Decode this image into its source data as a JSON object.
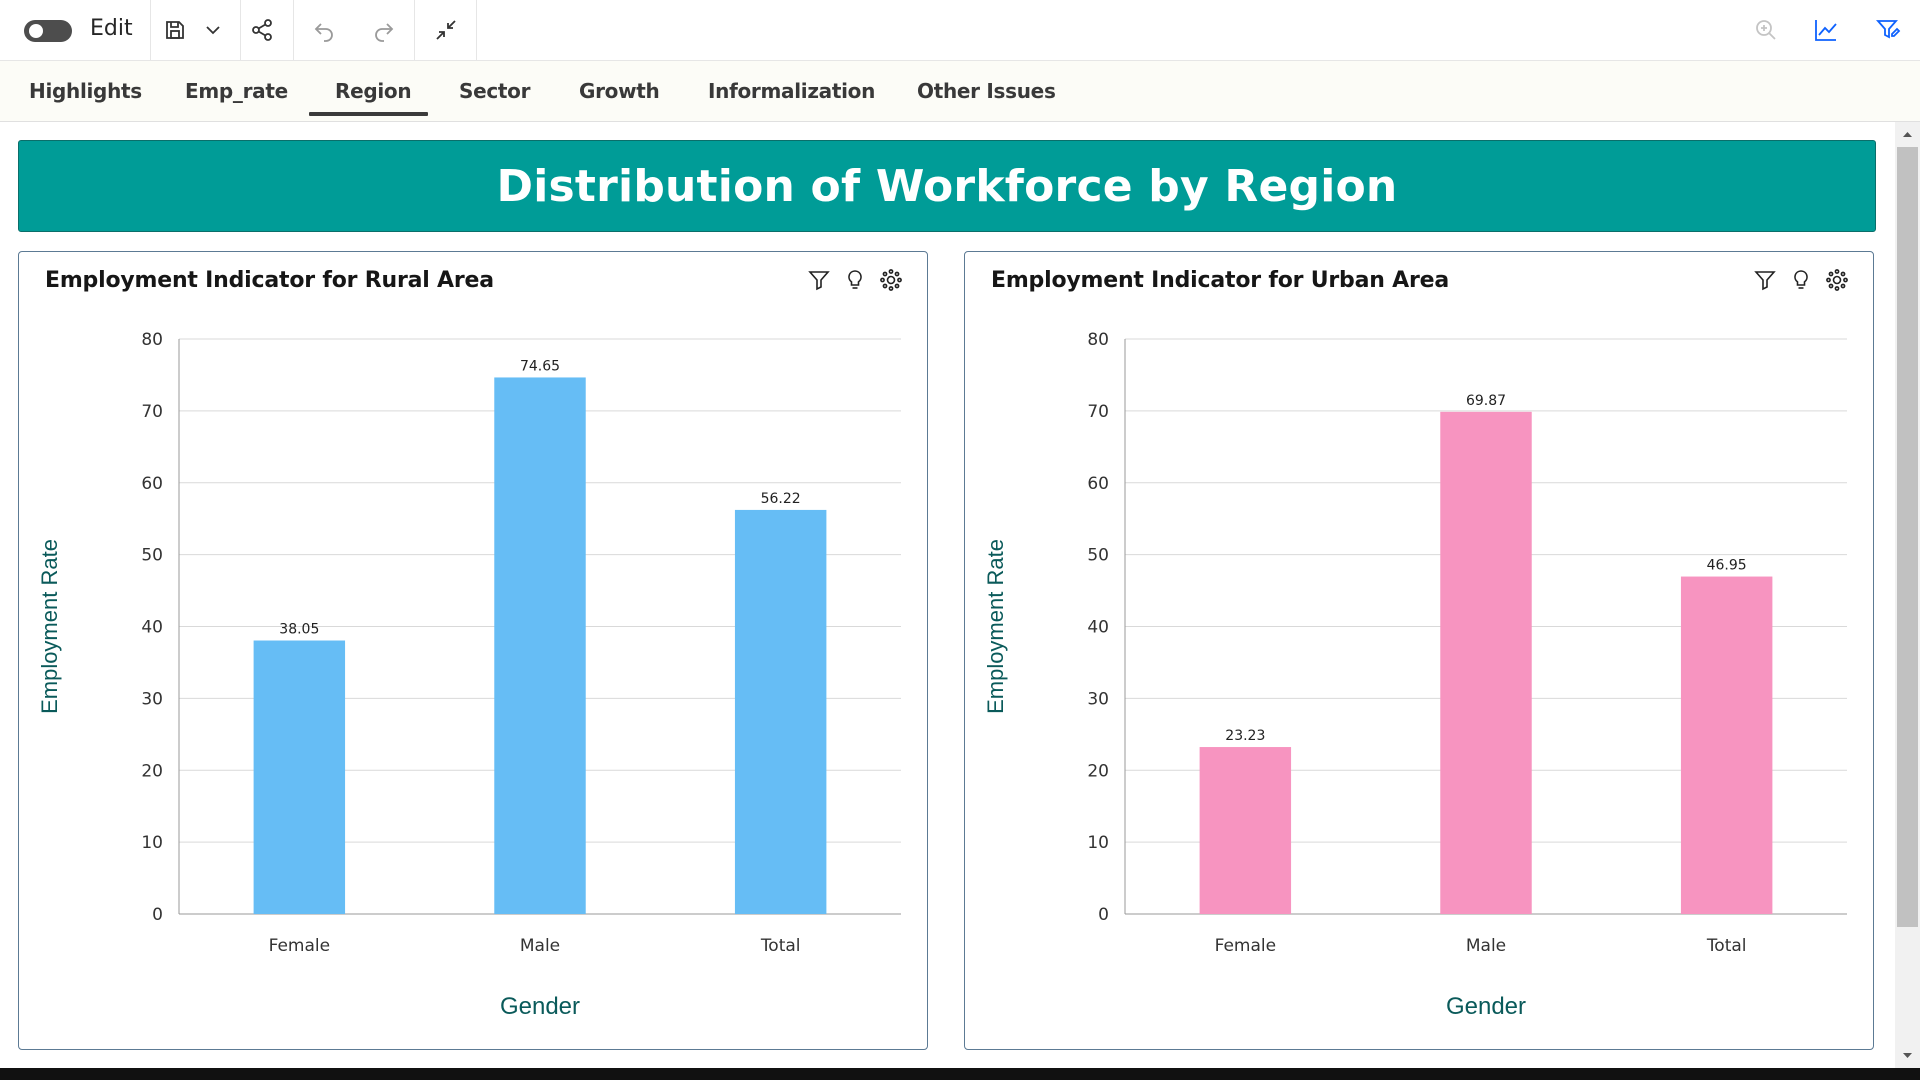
{
  "toolbar": {
    "edit_label": "Edit",
    "icons": [
      "toggle-switch",
      "save-icon",
      "chevron-down-icon",
      "share-icon",
      "undo-icon",
      "redo-icon",
      "collapse-icon",
      "zoom-in-icon",
      "line-chart-icon",
      "filter-edit-icon"
    ]
  },
  "tabs": [
    {
      "label": "Highlights"
    },
    {
      "label": "Emp_rate"
    },
    {
      "label": "Region",
      "active": true
    },
    {
      "label": "Sector"
    },
    {
      "label": "Growth"
    },
    {
      "label": "Informalization"
    },
    {
      "label": "Other Issues"
    }
  ],
  "banner": {
    "title": "Distribution of Workforce by Region"
  },
  "colors": {
    "banner": "#009c97",
    "rural_bar": "#66bdf5",
    "urban_bar": "#f794c0",
    "axis_title": "#0a5a5a"
  },
  "chart_data": [
    {
      "type": "bar",
      "title": "Employment Indicator for Rural Area",
      "xlabel": "Gender",
      "ylabel": "Employment Rate",
      "categories": [
        "Female",
        "Male",
        "Total"
      ],
      "values": [
        38.05,
        74.65,
        56.22
      ],
      "value_labels": [
        "38.05",
        "74.65",
        "56.22"
      ],
      "ylim": [
        0,
        80
      ],
      "yticks": [
        "0",
        "10",
        "20",
        "30",
        "40",
        "50",
        "60",
        "70",
        "80"
      ],
      "grid": true,
      "color": "#66bdf5"
    },
    {
      "type": "bar",
      "title": "Employment Indicator for Urban Area",
      "xlabel": "Gender",
      "ylabel": "Employment Rate",
      "categories": [
        "Female",
        "Male",
        "Total"
      ],
      "values": [
        23.23,
        69.87,
        46.95
      ],
      "value_labels": [
        "23.23",
        "69.87",
        "46.95"
      ],
      "ylim": [
        0,
        80
      ],
      "yticks": [
        "0",
        "10",
        "20",
        "30",
        "40",
        "50",
        "60",
        "70",
        "80"
      ],
      "grid": true,
      "color": "#f794c0"
    }
  ],
  "card_icons": [
    "filter-icon",
    "insight-bulb-icon",
    "settings-icon"
  ]
}
